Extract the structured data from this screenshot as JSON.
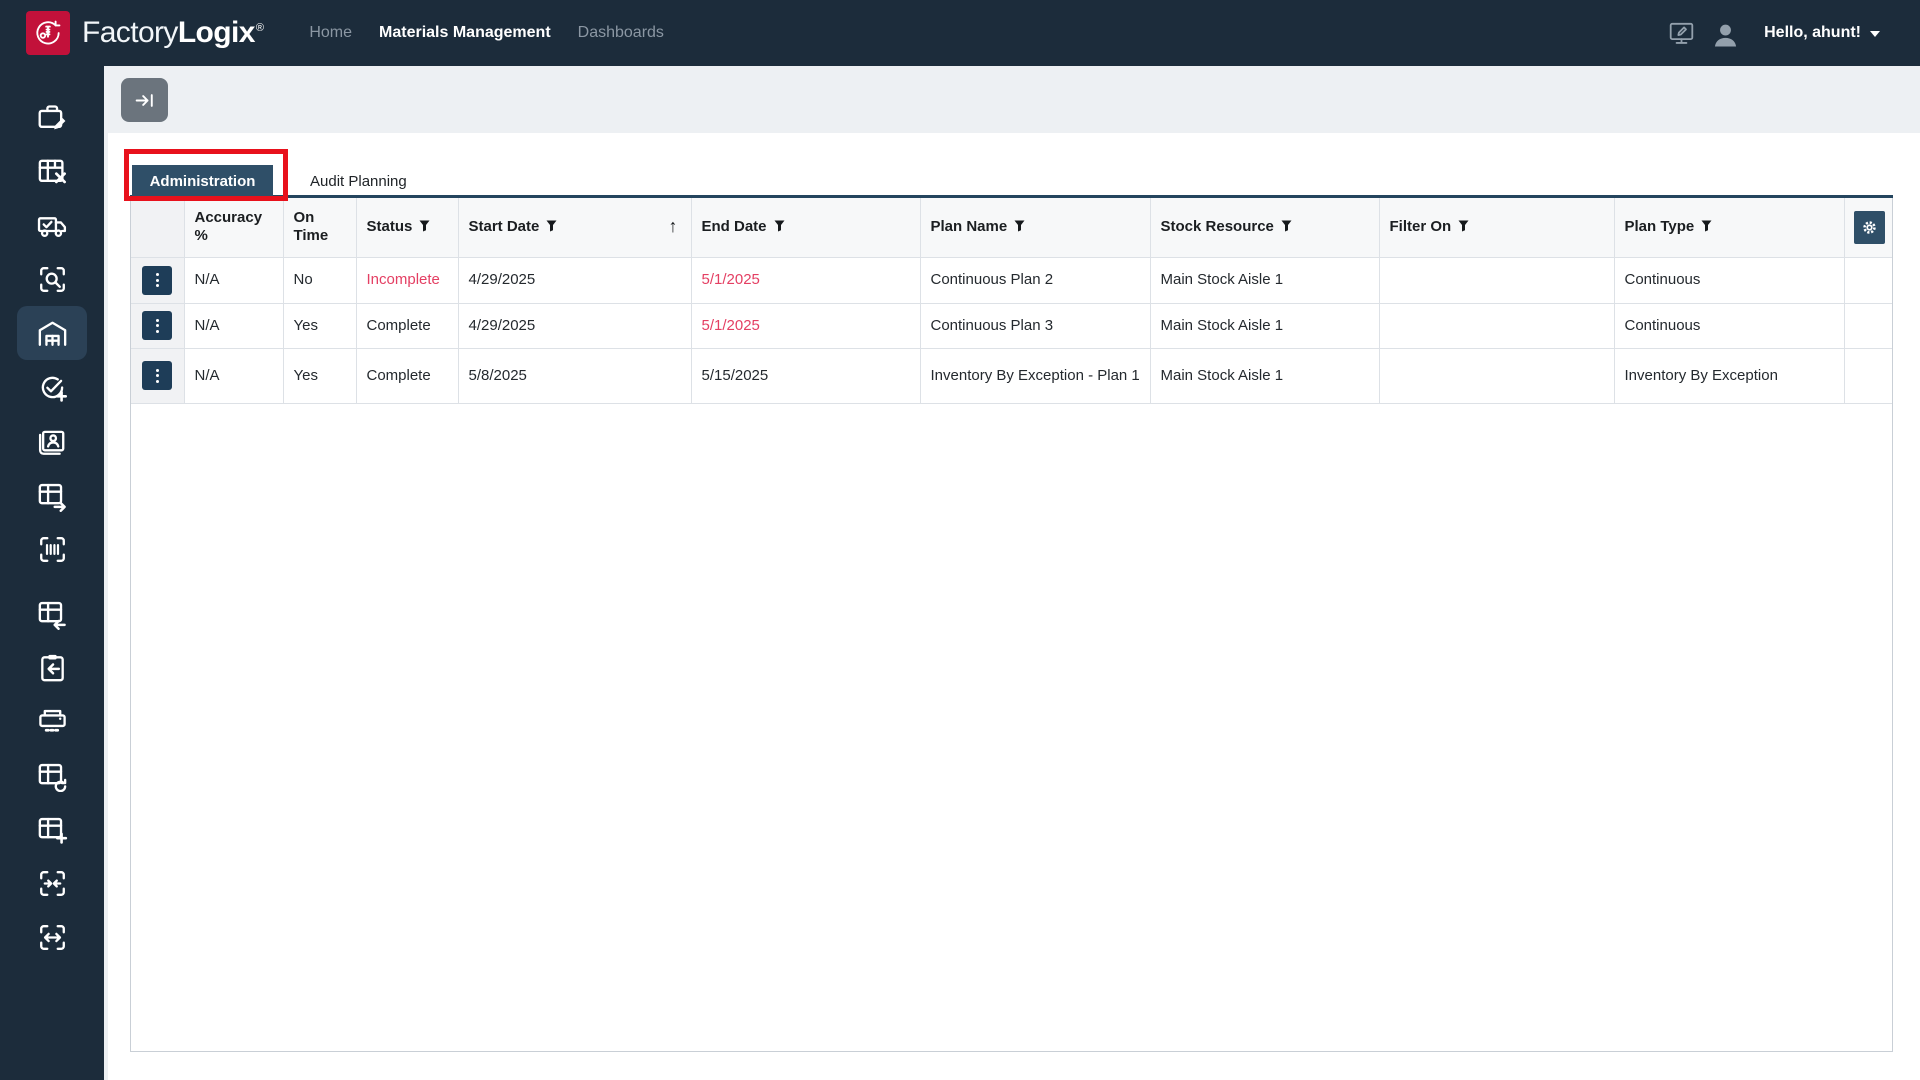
{
  "topbar": {
    "brand": {
      "name_light": "Factory",
      "name_bold": "Logix",
      "registered_mark": "®"
    },
    "nav": [
      {
        "label": "Home",
        "active": false
      },
      {
        "label": "Materials Management",
        "active": true
      },
      {
        "label": "Dashboards",
        "active": false
      }
    ],
    "user_greeting": "Hello, ahunt!"
  },
  "sidebar": {
    "items": [
      {
        "icon": "briefcase-edit-icon",
        "active": false
      },
      {
        "icon": "grid-remove-icon",
        "active": false
      },
      {
        "icon": "truck-check-icon",
        "active": false
      },
      {
        "icon": "scan-search-icon",
        "active": false
      },
      {
        "icon": "warehouse-icon",
        "active": true
      },
      {
        "icon": "check-circle-plus-icon",
        "active": false
      },
      {
        "icon": "id-card-icon",
        "active": false
      },
      {
        "icon": "grid-arrow-right-icon",
        "active": false
      },
      {
        "icon": "barcode-scan-icon",
        "active": false
      },
      {
        "icon": "grid-arrow-left-icon",
        "active": false,
        "gap_before": true
      },
      {
        "icon": "clipboard-return-icon",
        "active": false
      },
      {
        "icon": "printer-icon",
        "active": false
      },
      {
        "icon": "grid-refresh-icon",
        "active": false
      },
      {
        "icon": "grid-plus-icon",
        "active": false
      },
      {
        "icon": "scan-compress-icon",
        "active": false
      },
      {
        "icon": "scan-resize-icon",
        "active": false
      }
    ]
  },
  "tabs": [
    {
      "label": "Administration",
      "selected": true,
      "annotated": true
    },
    {
      "label": "Audit Planning",
      "selected": false
    }
  ],
  "grid": {
    "columns": [
      {
        "key": "actions",
        "label": "",
        "filter": false
      },
      {
        "key": "accuracy",
        "label": "Accuracy %",
        "filter": false
      },
      {
        "key": "on_time",
        "label": "On Time",
        "filter": false
      },
      {
        "key": "status",
        "label": "Status",
        "filter": true
      },
      {
        "key": "start_date",
        "label": "Start Date",
        "filter": true,
        "sort": "asc"
      },
      {
        "key": "end_date",
        "label": "End Date",
        "filter": true
      },
      {
        "key": "plan_name",
        "label": "Plan Name",
        "filter": true
      },
      {
        "key": "stock_resource",
        "label": "Stock Resource",
        "filter": true
      },
      {
        "key": "filter_on",
        "label": "Filter On",
        "filter": true
      },
      {
        "key": "plan_type",
        "label": "Plan Type",
        "filter": true
      },
      {
        "key": "settings",
        "label": "",
        "filter": false,
        "gear": true
      }
    ],
    "rows": [
      {
        "accuracy": "N/A",
        "on_time": "No",
        "status": "Incomplete",
        "status_alert": true,
        "start_date": "4/29/2025",
        "end_date": "5/1/2025",
        "end_date_alert": true,
        "plan_name": "Continuous Plan 2",
        "stock_resource": "Main Stock Aisle 1",
        "filter_on": "",
        "plan_type": "Continuous",
        "settings": ""
      },
      {
        "accuracy": "N/A",
        "on_time": "Yes",
        "status": "Complete",
        "status_alert": false,
        "start_date": "4/29/2025",
        "end_date": "5/1/2025",
        "end_date_alert": true,
        "plan_name": "Continuous Plan 3",
        "stock_resource": "Main Stock Aisle 1",
        "filter_on": "",
        "plan_type": "Continuous",
        "settings": ""
      },
      {
        "accuracy": "N/A",
        "on_time": "Yes",
        "status": "Complete",
        "status_alert": false,
        "start_date": "5/8/2025",
        "end_date": "5/15/2025",
        "end_date_alert": false,
        "plan_name": "Inventory By Exception - Plan 1",
        "stock_resource": "Main Stock Aisle 1",
        "filter_on": "",
        "plan_type": "Inventory By Exception",
        "settings": ""
      }
    ]
  },
  "colors": {
    "navy": "#1c2c3b",
    "brand_red": "#c2113a",
    "tab_navy": "#2f4f68",
    "alert_red": "#e43f63",
    "annotation_red": "#e8111c",
    "active_item": "#2b4156"
  }
}
